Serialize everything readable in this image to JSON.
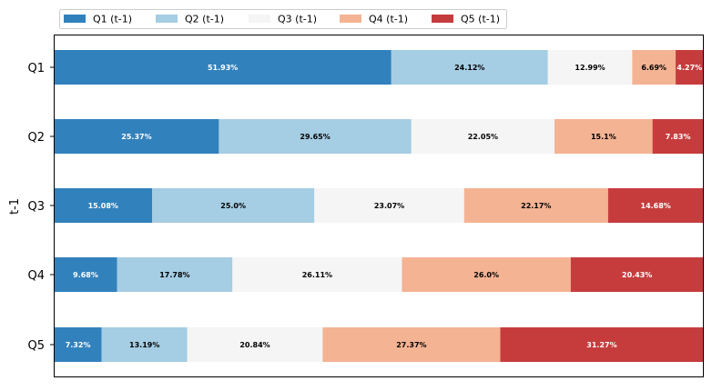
{
  "chart_data": {
    "type": "bar",
    "orientation": "horizontal",
    "stacked": true,
    "ylabel": "t-1",
    "xlabel": "",
    "categories": [
      "Q1",
      "Q2",
      "Q3",
      "Q4",
      "Q5"
    ],
    "xlim": [
      0,
      100
    ],
    "grid": false,
    "legend_position": "top-left",
    "series": [
      {
        "name": "Q1 (t-1)",
        "color": "#3181bd",
        "label_color": "#ffffff",
        "values": [
          51.93,
          25.37,
          15.08,
          9.68,
          7.32
        ],
        "labels": [
          "51.93%",
          "25.37%",
          "15.08%",
          "9.68%",
          "7.32%"
        ]
      },
      {
        "name": "Q2 (t-1)",
        "color": "#a5cde3",
        "label_color": "#000000",
        "values": [
          24.12,
          29.65,
          25.0,
          17.78,
          13.19
        ],
        "labels": [
          "24.12%",
          "29.65%",
          "25.0%",
          "17.78%",
          "13.19%"
        ]
      },
      {
        "name": "Q3 (t-1)",
        "color": "#f5f5f5",
        "label_color": "#000000",
        "values": [
          12.99,
          22.05,
          23.07,
          26.11,
          20.84
        ],
        "labels": [
          "12.99%",
          "22.05%",
          "23.07%",
          "26.11%",
          "20.84%"
        ]
      },
      {
        "name": "Q4 (t-1)",
        "color": "#f4b393",
        "label_color": "#000000",
        "values": [
          6.69,
          15.1,
          22.17,
          26.0,
          27.37
        ],
        "labels": [
          "6.69%",
          "15.1%",
          "22.17%",
          "26.0%",
          "27.37%"
        ]
      },
      {
        "name": "Q5 (t-1)",
        "color": "#c63c3d",
        "label_color": "#ffffff",
        "values": [
          4.27,
          7.83,
          14.68,
          20.43,
          31.27
        ],
        "labels": [
          "4.27%",
          "7.83%",
          "14.68%",
          "20.43%",
          "31.27%"
        ]
      }
    ]
  }
}
